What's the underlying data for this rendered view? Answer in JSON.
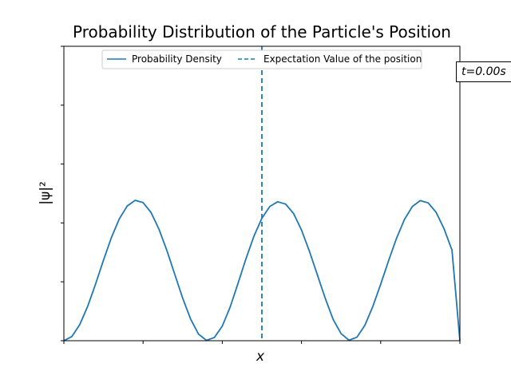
{
  "chart_data": {
    "type": "line",
    "title": "Probability Distribution of the Particle's Position",
    "xlabel": "x",
    "ylabel": "|ψ|²",
    "xlim": [
      0,
      1
    ],
    "ylim": [
      0,
      2.5
    ],
    "xticks": [
      0,
      0.2,
      0.4,
      0.6,
      0.8,
      1.0
    ],
    "yticks": [
      0,
      0.5,
      1.0,
      1.5,
      2.0,
      2.5
    ],
    "tick_labels_visible": false,
    "grid": false,
    "legend_placement": "upper-center",
    "series": [
      {
        "name": "Probability Density",
        "style": "solid",
        "color": "#1f77b4",
        "x": [
          0,
          0.02,
          0.04,
          0.06,
          0.08,
          0.1,
          0.12,
          0.14,
          0.16,
          0.18,
          0.2,
          0.22,
          0.24,
          0.26,
          0.28,
          0.3,
          0.32,
          0.34,
          0.36,
          0.38,
          0.4,
          0.42,
          0.44,
          0.46,
          0.48,
          0.5,
          0.52,
          0.54,
          0.56,
          0.58,
          0.6,
          0.62,
          0.64,
          0.66,
          0.68,
          0.7,
          0.72,
          0.74,
          0.76,
          0.78,
          0.8,
          0.82,
          0.84,
          0.86,
          0.88,
          0.9,
          0.92,
          0.94,
          0.96,
          0.98,
          1.0
        ],
        "y": [
          0,
          0.035,
          0.136,
          0.291,
          0.481,
          0.684,
          0.876,
          1.035,
          1.144,
          1.192,
          1.173,
          1.089,
          0.948,
          0.767,
          0.564,
          0.361,
          0.184,
          0.056,
          0.003,
          0.027,
          0.124,
          0.287,
          0.49,
          0.698,
          0.888,
          1.04,
          1.14,
          1.18,
          1.16,
          1.08,
          0.94,
          0.76,
          0.56,
          0.36,
          0.18,
          0.06,
          0.004,
          0.03,
          0.13,
          0.29,
          0.48,
          0.68,
          0.87,
          1.03,
          1.14,
          1.19,
          1.17,
          1.09,
          0.95,
          0.77,
          0.0
        ]
      },
      {
        "name": "Expectation Value of the position",
        "style": "dashed",
        "color": "#1f77b4",
        "x_value": 0.5
      }
    ],
    "annotations": [
      {
        "text": "t=0.00s",
        "placement": "upper-right, outside plot"
      }
    ]
  }
}
